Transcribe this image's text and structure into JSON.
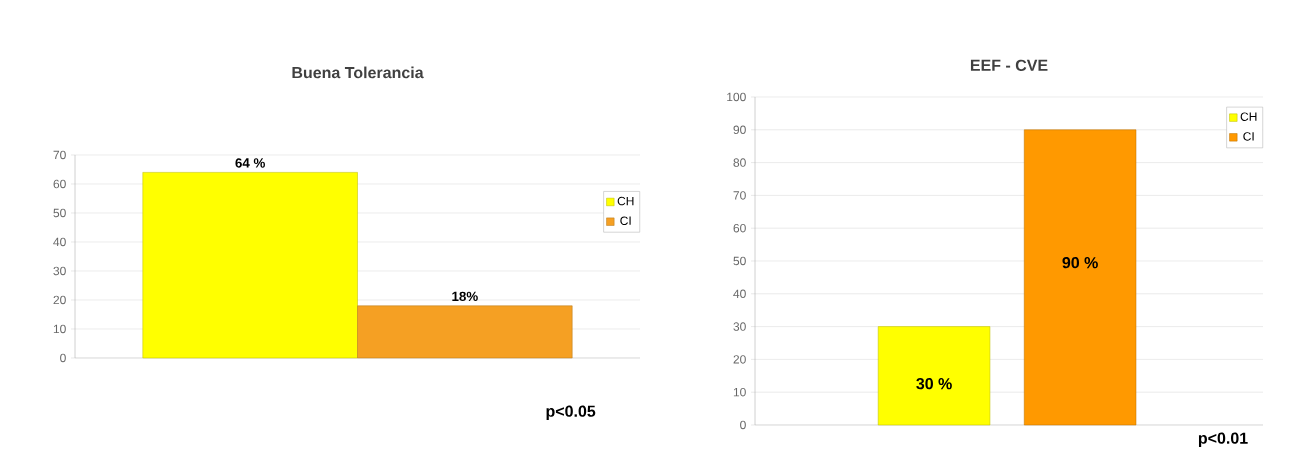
{
  "chart_data": [
    {
      "type": "bar",
      "title": "Buena Tolerancia",
      "categories": [
        null
      ],
      "series": [
        {
          "name": "CH",
          "color": "#ffff00",
          "values": [
            64
          ],
          "value_labels": [
            "64 %"
          ]
        },
        {
          "name": "CI",
          "color": "#f5a023",
          "values": [
            18
          ],
          "value_labels": [
            "18%"
          ]
        }
      ],
      "ylim": [
        0,
        70
      ],
      "yticks": [
        0,
        10,
        20,
        30,
        40,
        50,
        60,
        70
      ],
      "grid": "y",
      "legend": "right",
      "annotations": [
        "p<0.05"
      ]
    },
    {
      "type": "bar",
      "title": "EEF - CVE",
      "categories": [
        null
      ],
      "series": [
        {
          "name": "CH",
          "color": "#ffff00",
          "values": [
            30
          ],
          "value_labels": [
            "30 %"
          ]
        },
        {
          "name": "CI",
          "color": "#ff9900",
          "values": [
            90
          ],
          "value_labels": [
            "90 %"
          ]
        }
      ],
      "ylim": [
        0,
        100
      ],
      "yticks": [
        0,
        10,
        20,
        30,
        40,
        50,
        60,
        70,
        80,
        90,
        100
      ],
      "grid": "y",
      "legend": "top right",
      "annotations": [
        "p<0.01"
      ]
    }
  ]
}
